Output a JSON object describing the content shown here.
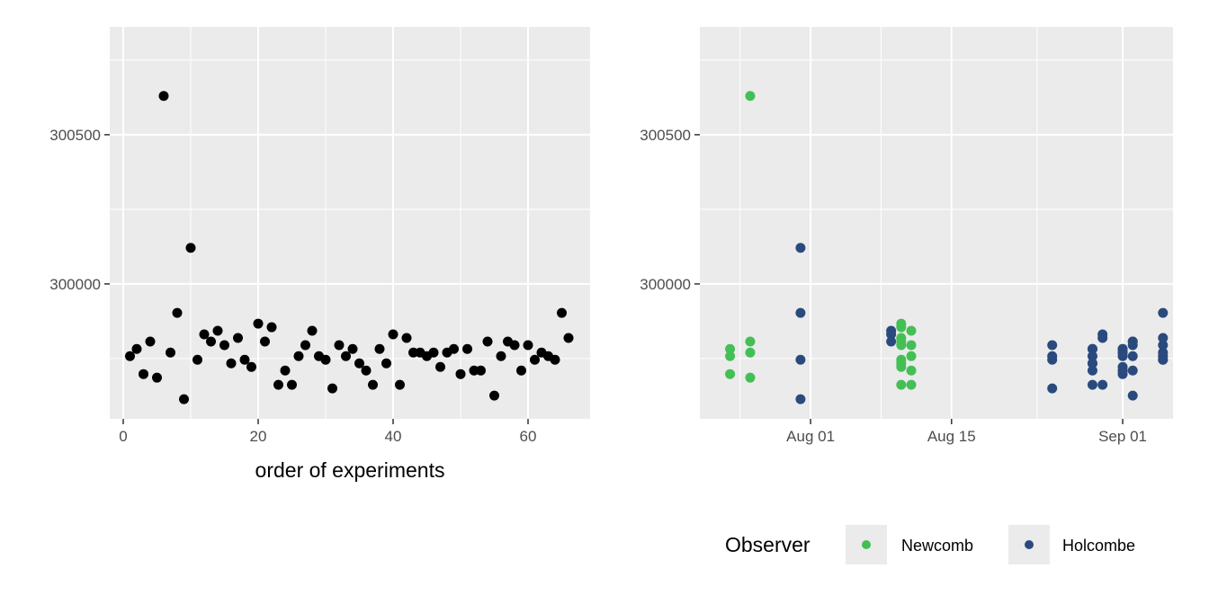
{
  "colors": {
    "panel_bg": "#EBEBEB",
    "grid": "#FFFFFF",
    "point_default": "#000000",
    "Newcomb": "#44BF55",
    "Holcombe": "#2A4A7E"
  },
  "chart_data": [
    {
      "type": "scatter",
      "xlabel": "order of experiments",
      "ylabel": "",
      "xlim": [
        -2,
        69.2
      ],
      "ylim": [
        299548,
        300861
      ],
      "x_ticks": [
        0,
        20,
        40,
        60
      ],
      "x_tick_labels": [
        "0",
        "20",
        "40",
        "60"
      ],
      "y_ticks": [
        300000,
        300500
      ],
      "y_tick_labels": [
        "300000",
        "300500"
      ],
      "grid": true,
      "x": [
        1,
        2,
        3,
        4,
        5,
        6,
        7,
        8,
        9,
        10,
        11,
        12,
        13,
        14,
        15,
        16,
        17,
        18,
        19,
        20,
        21,
        22,
        23,
        24,
        25,
        26,
        27,
        28,
        29,
        30,
        31,
        32,
        33,
        34,
        35,
        36,
        37,
        38,
        39,
        40,
        41,
        42,
        43,
        44,
        45,
        46,
        47,
        48,
        49,
        50,
        51,
        52,
        53,
        54,
        55,
        56,
        57,
        58,
        59,
        60,
        61,
        62,
        63,
        64,
        65,
        66
      ],
      "y": [
        299758,
        299782,
        299698,
        299807,
        299686,
        300630,
        299770,
        299903,
        299614,
        300121,
        299746,
        299831,
        299807,
        299843,
        299795,
        299734,
        299819,
        299746,
        299722,
        299867,
        299807,
        299855,
        299662,
        299710,
        299662,
        299758,
        299795,
        299843,
        299758,
        299746,
        299650,
        299795,
        299758,
        299782,
        299734,
        299710,
        299662,
        299782,
        299734,
        299831,
        299662,
        299819,
        299770,
        299770,
        299758,
        299770,
        299722,
        299770,
        299782,
        299698,
        299782,
        299710,
        299710,
        299807,
        299626,
        299758,
        299807,
        299795,
        299710,
        299795,
        299746,
        299770,
        299758,
        299746,
        299903,
        299819
      ]
    },
    {
      "type": "scatter",
      "xlabel": "",
      "ylabel": "",
      "xlim": [
        "1882-07-21",
        "1882-09-06"
      ],
      "ylim": [
        299548,
        300861
      ],
      "x_ticks": [
        "1882-08-01",
        "1882-08-15",
        "1882-09-01"
      ],
      "x_tick_labels": [
        "Aug 01",
        "Aug 15",
        "Sep 01"
      ],
      "y_ticks": [
        300000,
        300500
      ],
      "y_tick_labels": [
        "300000",
        "300500"
      ],
      "grid": true,
      "legend": {
        "title": "Observer",
        "placement": "bottom",
        "entries": [
          "Newcomb",
          "Holcombe"
        ]
      },
      "groups": [
        {
          "date": "1882-07-24",
          "observer": "Newcomb",
          "y": [
            299758,
            299782,
            299698
          ]
        },
        {
          "date": "1882-07-26",
          "observer": "Newcomb",
          "y": [
            299807,
            299686,
            300630,
            299770
          ]
        },
        {
          "date": "1882-07-31",
          "observer": "Holcombe",
          "y": [
            299903,
            299614,
            300121,
            299746
          ]
        },
        {
          "date": "1882-08-09",
          "observer": "Holcombe",
          "y": [
            299831,
            299807,
            299843
          ]
        },
        {
          "date": "1882-08-10",
          "observer": "Newcomb",
          "y": [
            299795,
            299734,
            299819,
            299746,
            299722,
            299867,
            299807,
            299855,
            299662
          ]
        },
        {
          "date": "1882-08-11",
          "observer": "Newcomb",
          "y": [
            299710,
            299662,
            299758,
            299795,
            299843
          ]
        },
        {
          "date": "1882-08-25",
          "observer": "Holcombe",
          "y": [
            299758,
            299746,
            299650,
            299795
          ]
        },
        {
          "date": "1882-08-29",
          "observer": "Holcombe",
          "y": [
            299758,
            299782,
            299734,
            299710,
            299662,
            299782,
            299734
          ]
        },
        {
          "date": "1882-08-30",
          "observer": "Holcombe",
          "y": [
            299831,
            299662,
            299819
          ]
        },
        {
          "date": "1882-09-01",
          "observer": "Holcombe",
          "y": [
            299770,
            299770,
            299758,
            299770,
            299722,
            299770,
            299782,
            299698,
            299782,
            299710,
            299710
          ]
        },
        {
          "date": "1882-09-02",
          "observer": "Holcombe",
          "y": [
            299807,
            299626,
            299758,
            299807,
            299795,
            299710
          ]
        },
        {
          "date": "1882-09-05",
          "observer": "Holcombe",
          "y": [
            299795,
            299746,
            299770,
            299758,
            299746,
            299903,
            299819
          ]
        }
      ]
    }
  ]
}
